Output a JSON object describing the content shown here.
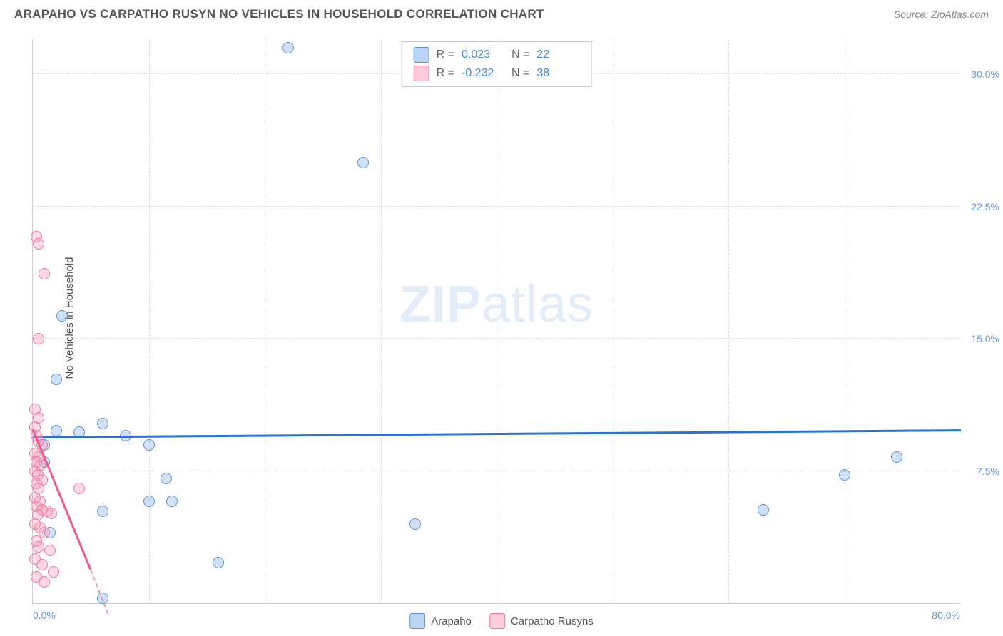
{
  "header": {
    "title": "ARAPAHO VS CARPATHO RUSYN NO VEHICLES IN HOUSEHOLD CORRELATION CHART",
    "source": "Source: ZipAtlas.com"
  },
  "chart": {
    "type": "scatter",
    "ylabel": "No Vehicles in Household",
    "xlim": [
      0,
      80
    ],
    "ylim": [
      0,
      32
    ],
    "xticks": [
      {
        "v": 0,
        "l": "0.0%"
      },
      {
        "v": 80,
        "l": "80.0%"
      }
    ],
    "yticks": [
      {
        "v": 7.5,
        "l": "7.5%"
      },
      {
        "v": 15,
        "l": "15.0%"
      },
      {
        "v": 22.5,
        "l": "22.5%"
      },
      {
        "v": 30,
        "l": "30.0%"
      }
    ],
    "vgrid": [
      10,
      20,
      30,
      40,
      50,
      60,
      70
    ],
    "background_color": "#ffffff",
    "grid_color": "#dddddd",
    "point_size": 16,
    "colors": {
      "blue_fill": "rgba(120,170,230,0.35)",
      "blue_stroke": "#5a94d6",
      "pink_fill": "rgba(255,150,180,0.35)",
      "pink_stroke": "#ee7aa0",
      "trend_blue": "#2873d6",
      "trend_pink": "#ee5a8a",
      "tick_text": "#6699dd",
      "label_text": "#555555"
    },
    "series": [
      {
        "name": "Arapaho",
        "color": "blue",
        "points": [
          {
            "x": 22,
            "y": 31.5
          },
          {
            "x": 28.5,
            "y": 25
          },
          {
            "x": 2.5,
            "y": 16.3
          },
          {
            "x": 2,
            "y": 12.7
          },
          {
            "x": 6,
            "y": 10.2
          },
          {
            "x": 2,
            "y": 9.8
          },
          {
            "x": 4,
            "y": 9.7
          },
          {
            "x": 8,
            "y": 9.5
          },
          {
            "x": 10,
            "y": 9
          },
          {
            "x": 1,
            "y": 9
          },
          {
            "x": 74.5,
            "y": 8.3
          },
          {
            "x": 1,
            "y": 8
          },
          {
            "x": 70,
            "y": 7.3
          },
          {
            "x": 11.5,
            "y": 7.1
          },
          {
            "x": 10,
            "y": 5.8
          },
          {
            "x": 12,
            "y": 5.8
          },
          {
            "x": 63,
            "y": 5.3
          },
          {
            "x": 6,
            "y": 5.2
          },
          {
            "x": 33,
            "y": 4.5
          },
          {
            "x": 1.5,
            "y": 4
          },
          {
            "x": 16,
            "y": 2.3
          },
          {
            "x": 6,
            "y": 0.3
          }
        ],
        "trend": {
          "x0": 0,
          "y0": 9.5,
          "x1": 80,
          "y1": 9.9
        }
      },
      {
        "name": "Carpatho Rusyns",
        "color": "pink",
        "points": [
          {
            "x": 0.3,
            "y": 20.8
          },
          {
            "x": 0.5,
            "y": 20.4
          },
          {
            "x": 1,
            "y": 18.7
          },
          {
            "x": 0.5,
            "y": 15
          },
          {
            "x": 0.2,
            "y": 11
          },
          {
            "x": 0.5,
            "y": 10.5
          },
          {
            "x": 0.2,
            "y": 10
          },
          {
            "x": 0.3,
            "y": 9.5
          },
          {
            "x": 0.5,
            "y": 9.2
          },
          {
            "x": 0.8,
            "y": 9
          },
          {
            "x": 0.2,
            "y": 8.5
          },
          {
            "x": 0.5,
            "y": 8.3
          },
          {
            "x": 0.3,
            "y": 8
          },
          {
            "x": 0.6,
            "y": 7.8
          },
          {
            "x": 0.2,
            "y": 7.5
          },
          {
            "x": 0.4,
            "y": 7.3
          },
          {
            "x": 0.8,
            "y": 7
          },
          {
            "x": 0.3,
            "y": 6.8
          },
          {
            "x": 0.5,
            "y": 6.5
          },
          {
            "x": 4,
            "y": 6.5
          },
          {
            "x": 0.2,
            "y": 6
          },
          {
            "x": 0.6,
            "y": 5.8
          },
          {
            "x": 0.3,
            "y": 5.5
          },
          {
            "x": 0.8,
            "y": 5.3
          },
          {
            "x": 1.2,
            "y": 5.2
          },
          {
            "x": 1.6,
            "y": 5.1
          },
          {
            "x": 0.4,
            "y": 5
          },
          {
            "x": 0.2,
            "y": 4.5
          },
          {
            "x": 0.6,
            "y": 4.3
          },
          {
            "x": 1,
            "y": 4
          },
          {
            "x": 0.3,
            "y": 3.5
          },
          {
            "x": 0.5,
            "y": 3.2
          },
          {
            "x": 1.5,
            "y": 3
          },
          {
            "x": 0.2,
            "y": 2.5
          },
          {
            "x": 0.8,
            "y": 2.2
          },
          {
            "x": 1.8,
            "y": 1.8
          },
          {
            "x": 0.3,
            "y": 1.5
          },
          {
            "x": 1,
            "y": 1.2
          }
        ],
        "trend": {
          "x0": 0,
          "y0": 10,
          "x1": 5,
          "y1": 2
        },
        "trend_dashed": {
          "x0": 5,
          "y0": 2,
          "x1": 6.5,
          "y1": -0.5
        }
      }
    ],
    "legend_top": [
      {
        "color": "blue",
        "r_label": "R =",
        "r": "0.023",
        "n_label": "N =",
        "n": "22"
      },
      {
        "color": "pink",
        "r_label": "R =",
        "r": "-0.232",
        "n_label": "N =",
        "n": "38"
      }
    ],
    "legend_bottom": [
      {
        "color": "blue",
        "label": "Arapaho"
      },
      {
        "color": "pink",
        "label": "Carpatho Rusyns"
      }
    ],
    "watermark": {
      "zip": "ZIP",
      "atlas": "atlas"
    }
  }
}
